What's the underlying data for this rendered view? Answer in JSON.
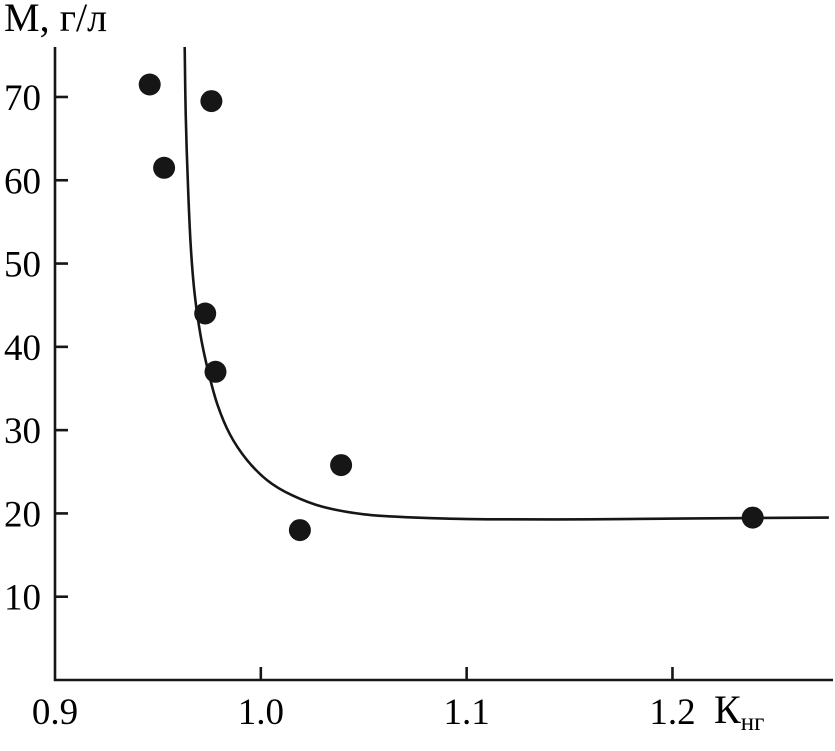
{
  "figure": {
    "ylabel": "М, г/л",
    "xlabel_main": "К",
    "xlabel_sub": "нг"
  },
  "chart_data": {
    "type": "scatter",
    "title": "",
    "xlabel": "Кнг",
    "ylabel": "М, г/л",
    "xlim": [
      0.9,
      1.278
    ],
    "ylim": [
      0,
      76
    ],
    "grid": false,
    "legend": "none",
    "colors": {
      "ink": "#161616",
      "background": "#ffffff"
    },
    "x_ticks": [
      {
        "v": 0.9,
        "label": "0.9"
      },
      {
        "v": 1.0,
        "label": "1.0"
      },
      {
        "v": 1.1,
        "label": "1.1"
      },
      {
        "v": 1.2,
        "label": "1.2"
      }
    ],
    "y_ticks": [
      {
        "v": 10,
        "label": "10"
      },
      {
        "v": 20,
        "label": "20"
      },
      {
        "v": 30,
        "label": "30"
      },
      {
        "v": 40,
        "label": "40"
      },
      {
        "v": 50,
        "label": "50"
      },
      {
        "v": 60,
        "label": "60"
      },
      {
        "v": 70,
        "label": "70"
      }
    ],
    "points": [
      {
        "x": 0.946,
        "y": 71.5
      },
      {
        "x": 0.976,
        "y": 69.5
      },
      {
        "x": 0.953,
        "y": 61.5
      },
      {
        "x": 0.973,
        "y": 44.0
      },
      {
        "x": 0.978,
        "y": 37.0
      },
      {
        "x": 1.039,
        "y": 25.8
      },
      {
        "x": 1.019,
        "y": 18.0
      },
      {
        "x": 1.239,
        "y": 19.5
      }
    ],
    "fit_curve": [
      {
        "x": 0.963,
        "y": 76.0
      },
      {
        "x": 0.9635,
        "y": 68.0
      },
      {
        "x": 0.9645,
        "y": 60.0
      },
      {
        "x": 0.966,
        "y": 52.0
      },
      {
        "x": 0.968,
        "y": 46.0
      },
      {
        "x": 0.971,
        "y": 41.0
      },
      {
        "x": 0.9745,
        "y": 37.0
      },
      {
        "x": 0.979,
        "y": 33.0
      },
      {
        "x": 0.985,
        "y": 29.5
      },
      {
        "x": 0.993,
        "y": 26.5
      },
      {
        "x": 1.003,
        "y": 24.0
      },
      {
        "x": 1.015,
        "y": 22.2
      },
      {
        "x": 1.03,
        "y": 20.8
      },
      {
        "x": 1.05,
        "y": 19.9
      },
      {
        "x": 1.075,
        "y": 19.5
      },
      {
        "x": 1.11,
        "y": 19.3
      },
      {
        "x": 1.16,
        "y": 19.3
      },
      {
        "x": 1.21,
        "y": 19.4
      },
      {
        "x": 1.276,
        "y": 19.5
      }
    ]
  }
}
